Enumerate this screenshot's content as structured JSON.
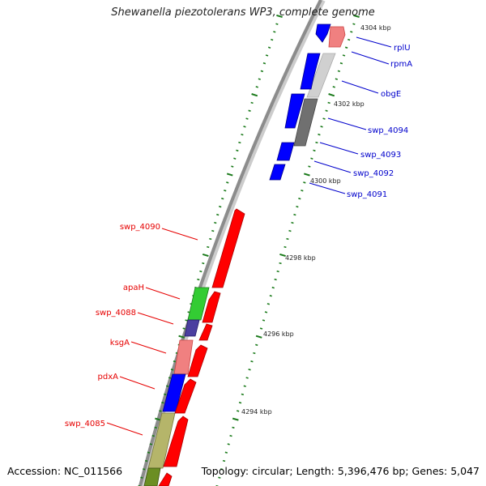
{
  "title": "Shewanella piezotolerans WP3, complete genome",
  "accession": "Accession: NC_011566",
  "topology": "Topology: circular; Length: 5,396,476 bp; Genes: 5,047",
  "colors": {
    "backbone": "#8c8c8c",
    "tick": "#1a7a1a",
    "tick_label": "#222222",
    "label_forward": "#0000cc",
    "label_reverse": "#e60000"
  },
  "kbp_labels": [
    "4304 kbp",
    "4302 kbp",
    "4300 kbp",
    "4298 kbp",
    "4296 kbp",
    "4294 kbp"
  ],
  "genes_forward": [
    {
      "name": "rplU",
      "color": "#f08080"
    },
    {
      "name": "rpmA",
      "color": "#c8c8c8"
    },
    {
      "name": "obgE",
      "color": "#0000ff"
    },
    {
      "name": "swp_4094",
      "color": "#707070"
    },
    {
      "name": "swp_4093",
      "color": "#0000ff"
    },
    {
      "name": "swp_4092",
      "color": "#0000ff"
    },
    {
      "name": "swp_4091",
      "color": "#0000ff"
    }
  ],
  "genes_reverse": [
    {
      "name": "swp_4090",
      "color": "#ff0000"
    },
    {
      "name": "apaH",
      "color": "#33cc33"
    },
    {
      "name": "swp_4088",
      "color": "#4b3fa0"
    },
    {
      "name": "ksgA",
      "color": "#f08080"
    },
    {
      "name": "pdxA",
      "color": "#0000ff"
    },
    {
      "name": "swp_4085",
      "color": "#b5b56a"
    }
  ]
}
